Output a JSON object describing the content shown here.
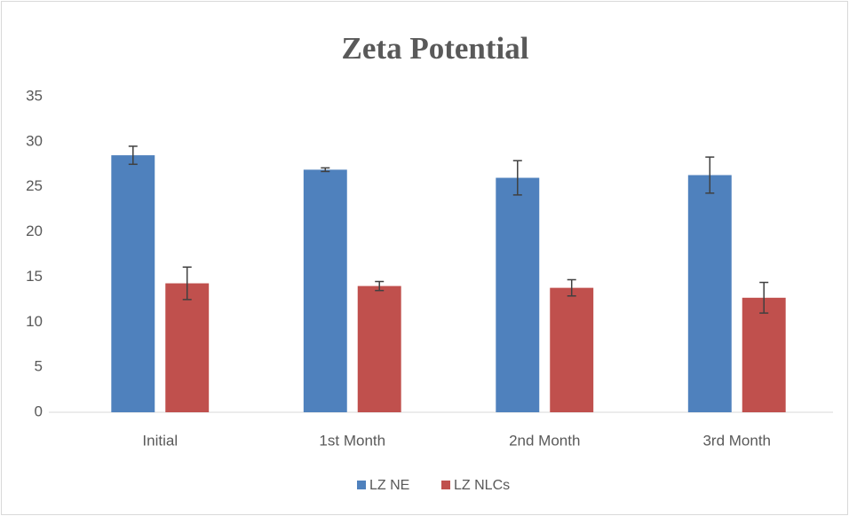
{
  "chart_data": {
    "type": "bar",
    "title": "Zeta Potential",
    "categories": [
      "Initial",
      "1st  Month",
      "2nd Month",
      "3rd Month"
    ],
    "series": [
      {
        "name": "LZ NE",
        "color": "#4f81bd",
        "values": [
          28.5,
          26.9,
          26.0,
          26.3
        ],
        "errors": [
          1.0,
          0.2,
          1.9,
          2.0
        ]
      },
      {
        "name": "LZ NLCs",
        "color": "#c0504d",
        "values": [
          14.3,
          14.0,
          13.8,
          12.7
        ],
        "errors": [
          1.8,
          0.5,
          0.9,
          1.7
        ]
      }
    ],
    "ylim": [
      0,
      35
    ],
    "yticks": [
      0,
      5,
      10,
      15,
      20,
      25,
      30,
      35
    ],
    "grid": false,
    "legend": "bottom"
  }
}
